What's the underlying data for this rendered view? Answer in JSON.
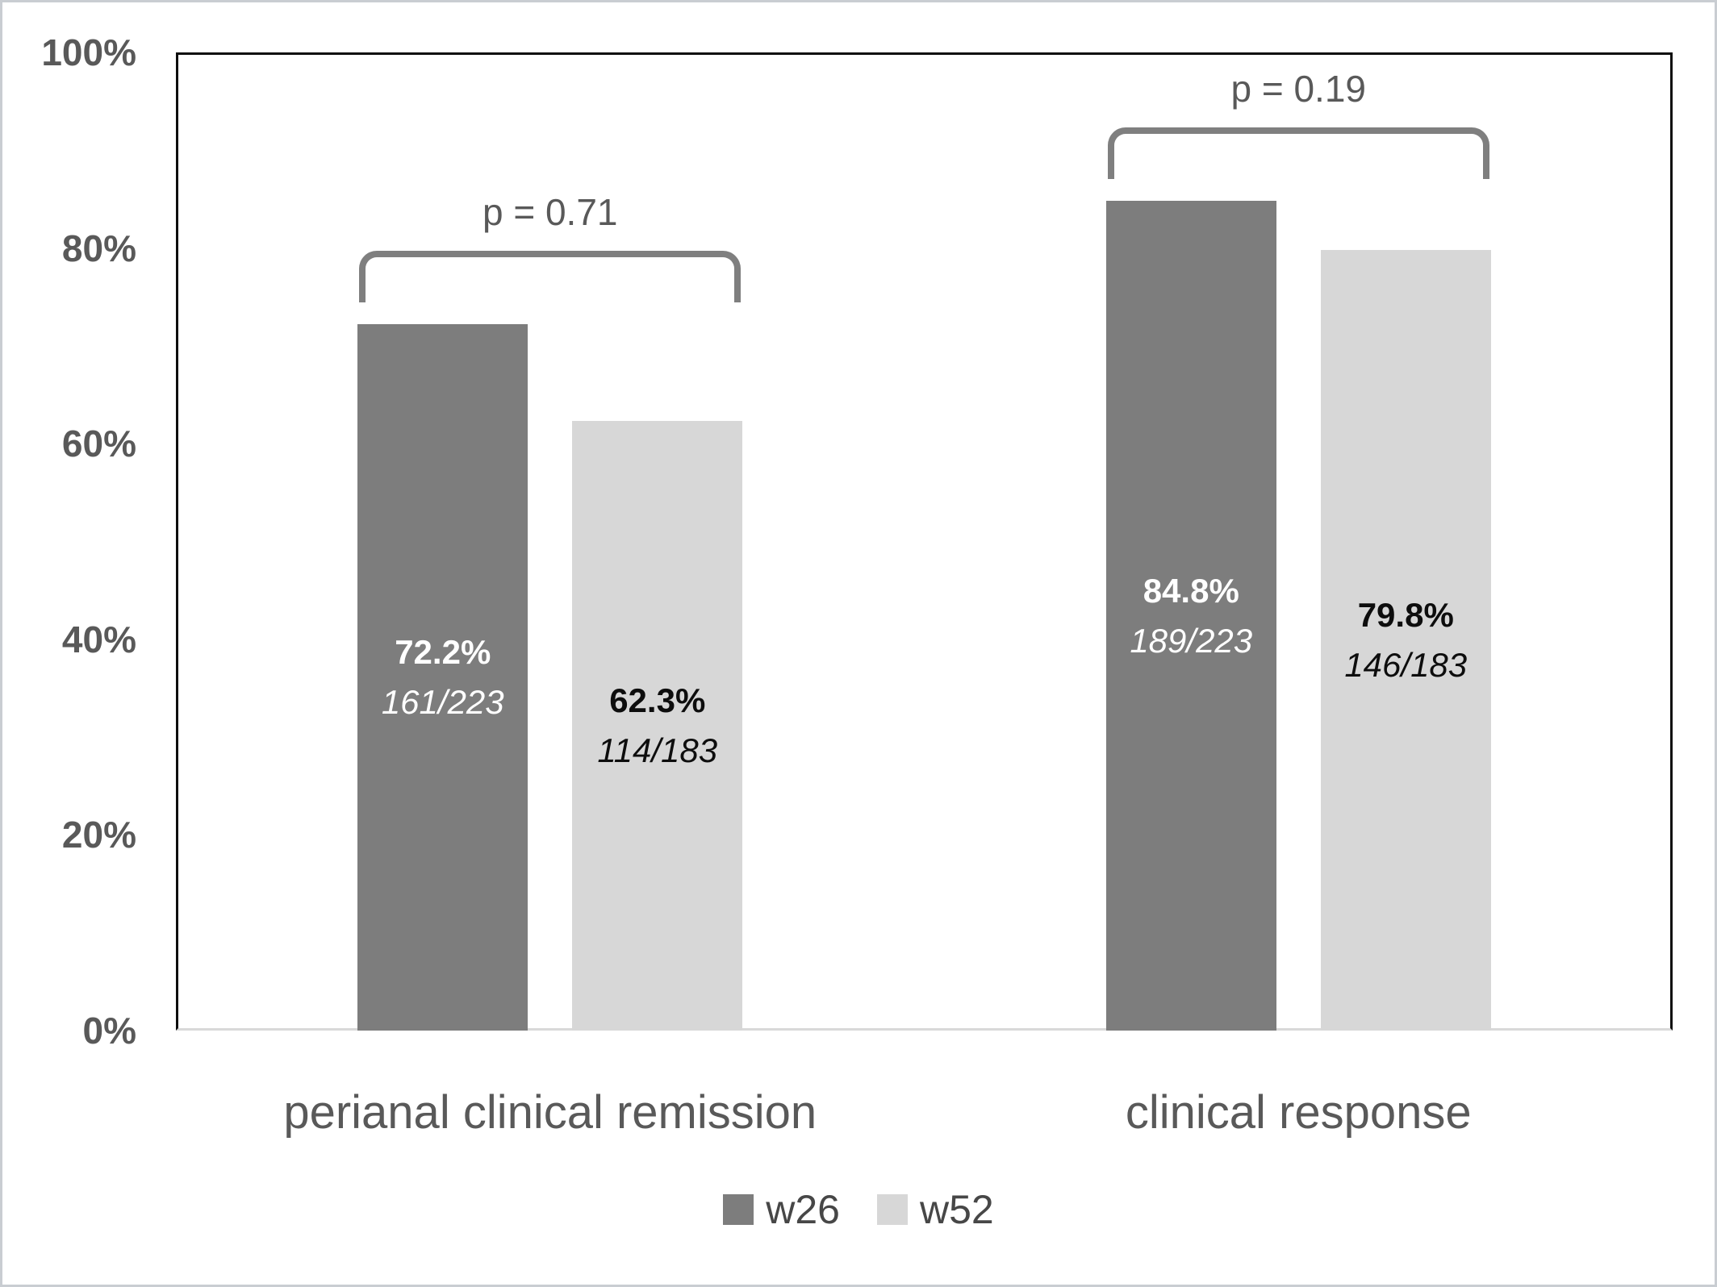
{
  "figure": {
    "background_color": "#ffffff",
    "border_color": "#c9cdd2"
  },
  "chart_data": {
    "type": "bar",
    "title": "",
    "xlabel": "",
    "ylabel": "",
    "categories": [
      "perianal clinical remission",
      "clinical response"
    ],
    "series": [
      {
        "name": "w26",
        "color": "#7d7d7d",
        "label_color": "#ffffff",
        "values": [
          72.2,
          84.8
        ],
        "bar_labels": [
          "72.2%",
          "84.8%"
        ],
        "bar_sublabels": [
          "161/223",
          "189/223"
        ]
      },
      {
        "name": "w52",
        "color": "#d7d7d7",
        "label_color": "#0d0d0d",
        "values": [
          62.3,
          79.8
        ],
        "bar_labels": [
          "62.3%",
          "79.8%"
        ],
        "bar_sublabels": [
          "114/183",
          "146/183"
        ]
      }
    ],
    "annotations": [
      {
        "category_index": 0,
        "text": "p = 0.71"
      },
      {
        "category_index": 1,
        "text": "p = 0.19"
      }
    ],
    "y_axis": {
      "min": 0,
      "max": 100,
      "grid": false,
      "tick_labels": [
        "0%",
        "20%",
        "40%",
        "60%",
        "80%",
        "100%"
      ],
      "tick_values": [
        0,
        20,
        40,
        60,
        80,
        100
      ]
    },
    "legend": {
      "position": "bottom",
      "entries": [
        "w26",
        "w52"
      ]
    },
    "styles": {
      "bracket_color": "#7f7f7f",
      "annotation_text_color": "#595959",
      "axis_tick_color": "#595959",
      "category_label_color": "#595959",
      "legend_text_color": "#474747",
      "plot_border_color": "#0d0d0d",
      "baseline_color": "#d9d9d9"
    }
  }
}
